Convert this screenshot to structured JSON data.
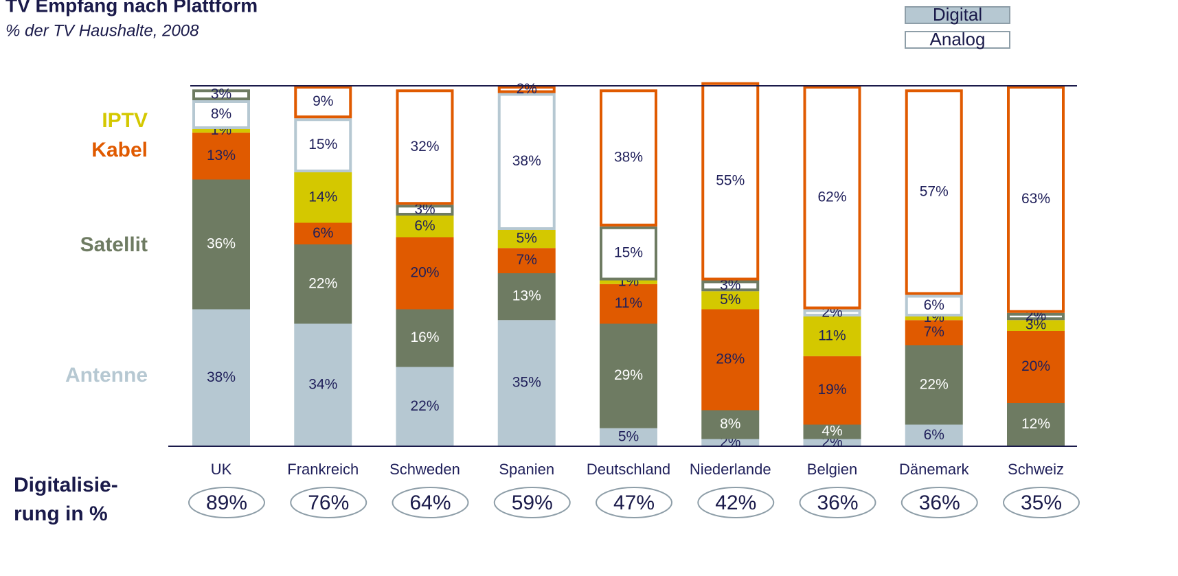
{
  "chart_data": {
    "type": "stacked-bar",
    "title": "TV Empfang nach Plattform",
    "subtitle": "% der TV Haushalte, 2008",
    "legend": [
      "Digital",
      "Analog"
    ],
    "categories": [
      "UK",
      "Frankreich",
      "Schweden",
      "Spanien",
      "Deutschland",
      "Niederlande",
      "Belgien",
      "Dänemark",
      "Schweiz"
    ],
    "series": [
      {
        "name": "IPTV",
        "color": "#d4c800",
        "values": [
          1,
          14,
          6,
          5,
          1,
          5,
          11,
          1,
          3
        ],
        "value_labels": [
          "1%",
          "14%",
          "6%",
          "5%",
          "1%",
          "5%",
          "11%",
          "1%",
          "3%"
        ]
      },
      {
        "name": "Kabel",
        "color": "#e05a00",
        "values": [
          13,
          6,
          20,
          7,
          11,
          28,
          19,
          7,
          20
        ],
        "value_labels": [
          "13%",
          "6%",
          "20%",
          "7%",
          "11%",
          "28%",
          "19%",
          "7%",
          "20%"
        ],
        "analog_values": [
          null,
          9,
          32,
          2,
          38,
          55,
          62,
          57,
          63
        ],
        "analog_value_labels": [
          null,
          "9%",
          "32%",
          "2%",
          "38%",
          "55%",
          "62%",
          "57%",
          "63%"
        ]
      },
      {
        "name": "Satellit",
        "color": "#6e7b62",
        "values": [
          36,
          22,
          16,
          13,
          29,
          8,
          4,
          22,
          12
        ],
        "value_labels": [
          "36%",
          "22%",
          "16%",
          "13%",
          "29%",
          "8%",
          "4%",
          "22%",
          "12%"
        ],
        "analog_values": [
          3,
          null,
          3,
          null,
          15,
          3,
          null,
          null,
          2
        ],
        "analog_value_labels": [
          "3%",
          null,
          "3%",
          null,
          "15%",
          "3%",
          null,
          null,
          "2%"
        ]
      },
      {
        "name": "Antenne",
        "color": "#b6c8d2",
        "values": [
          38,
          34,
          22,
          35,
          5,
          2,
          2,
          6,
          null
        ],
        "value_labels": [
          "38%",
          "34%",
          "22%",
          "35%",
          "5%",
          "2%",
          "2%",
          "6%",
          null
        ],
        "analog_values": [
          8,
          15,
          null,
          38,
          null,
          null,
          2,
          6,
          null
        ],
        "analog_value_labels": [
          "8%",
          "15%",
          null,
          "38%",
          null,
          null,
          "2%",
          "6%",
          null
        ]
      }
    ],
    "digitalization": {
      "title": [
        "Digitalisie-",
        "rung in %"
      ],
      "values": [
        89,
        76,
        64,
        59,
        47,
        42,
        36,
        36,
        35
      ],
      "value_labels": [
        "89%",
        "76%",
        "64%",
        "59%",
        "47%",
        "42%",
        "36%",
        "36%",
        "35%"
      ]
    }
  }
}
